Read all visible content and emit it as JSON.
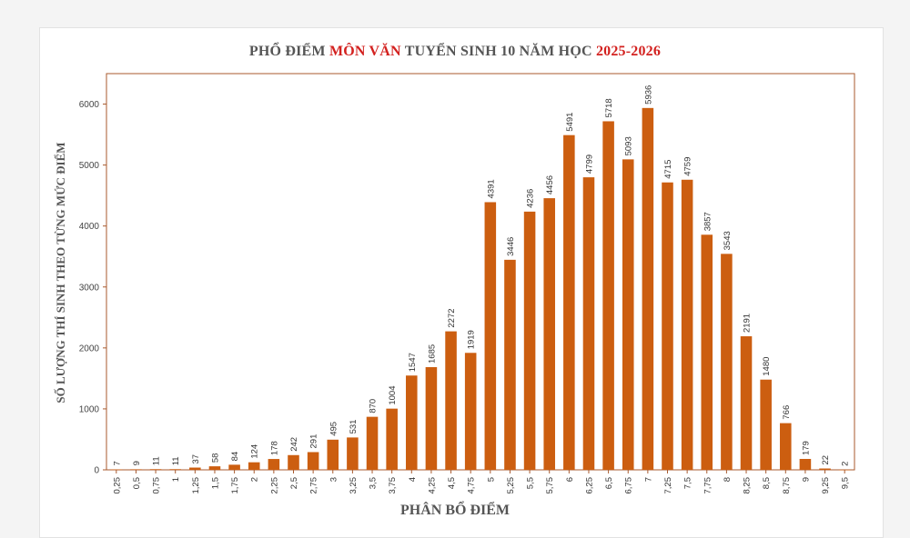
{
  "chart_data": {
    "type": "bar",
    "title_parts": [
      {
        "text": "PHỔ ĐIỂM ",
        "highlight": false
      },
      {
        "text": "MÔN VĂN",
        "highlight": true
      },
      {
        "text": " TUYỂN SINH 10 NĂM HỌC ",
        "highlight": false
      },
      {
        "text": "2025-2026",
        "highlight": true
      }
    ],
    "xlabel": "PHÂN BỔ ĐIỂM",
    "ylabel": "SỐ LƯỢNG THÍ SINH THEO TỪNG MỨC ĐIỂM",
    "ylim": [
      0,
      6500
    ],
    "yticks": [
      0,
      1000,
      2000,
      3000,
      4000,
      5000,
      6000
    ],
    "grid": false,
    "categories": [
      "0,25",
      "0,5",
      "0,75",
      "1",
      "1,25",
      "1,5",
      "1,75",
      "2",
      "2,25",
      "2,5",
      "2,75",
      "3",
      "3,25",
      "3,5",
      "3,75",
      "4",
      "4,25",
      "4,5",
      "4,75",
      "5",
      "5,25",
      "5,5",
      "5,75",
      "6",
      "6,25",
      "6,5",
      "6,75",
      "7",
      "7,25",
      "7,5",
      "7,75",
      "8",
      "8,25",
      "8,5",
      "8,75",
      "9",
      "9,25",
      "9,5"
    ],
    "values": [
      7,
      9,
      11,
      11,
      37,
      58,
      84,
      124,
      178,
      242,
      291,
      495,
      531,
      870,
      1004,
      1547,
      1685,
      2272,
      1919,
      4391,
      3446,
      4236,
      4456,
      5491,
      4799,
      5718,
      5093,
      5936,
      4715,
      4759,
      3857,
      3543,
      2191,
      1480,
      766,
      179,
      22,
      2
    ]
  },
  "colors": {
    "bar": "#cc5e10",
    "axis": "#a85a2e",
    "title": "#555555",
    "highlight": "#d3211f"
  }
}
